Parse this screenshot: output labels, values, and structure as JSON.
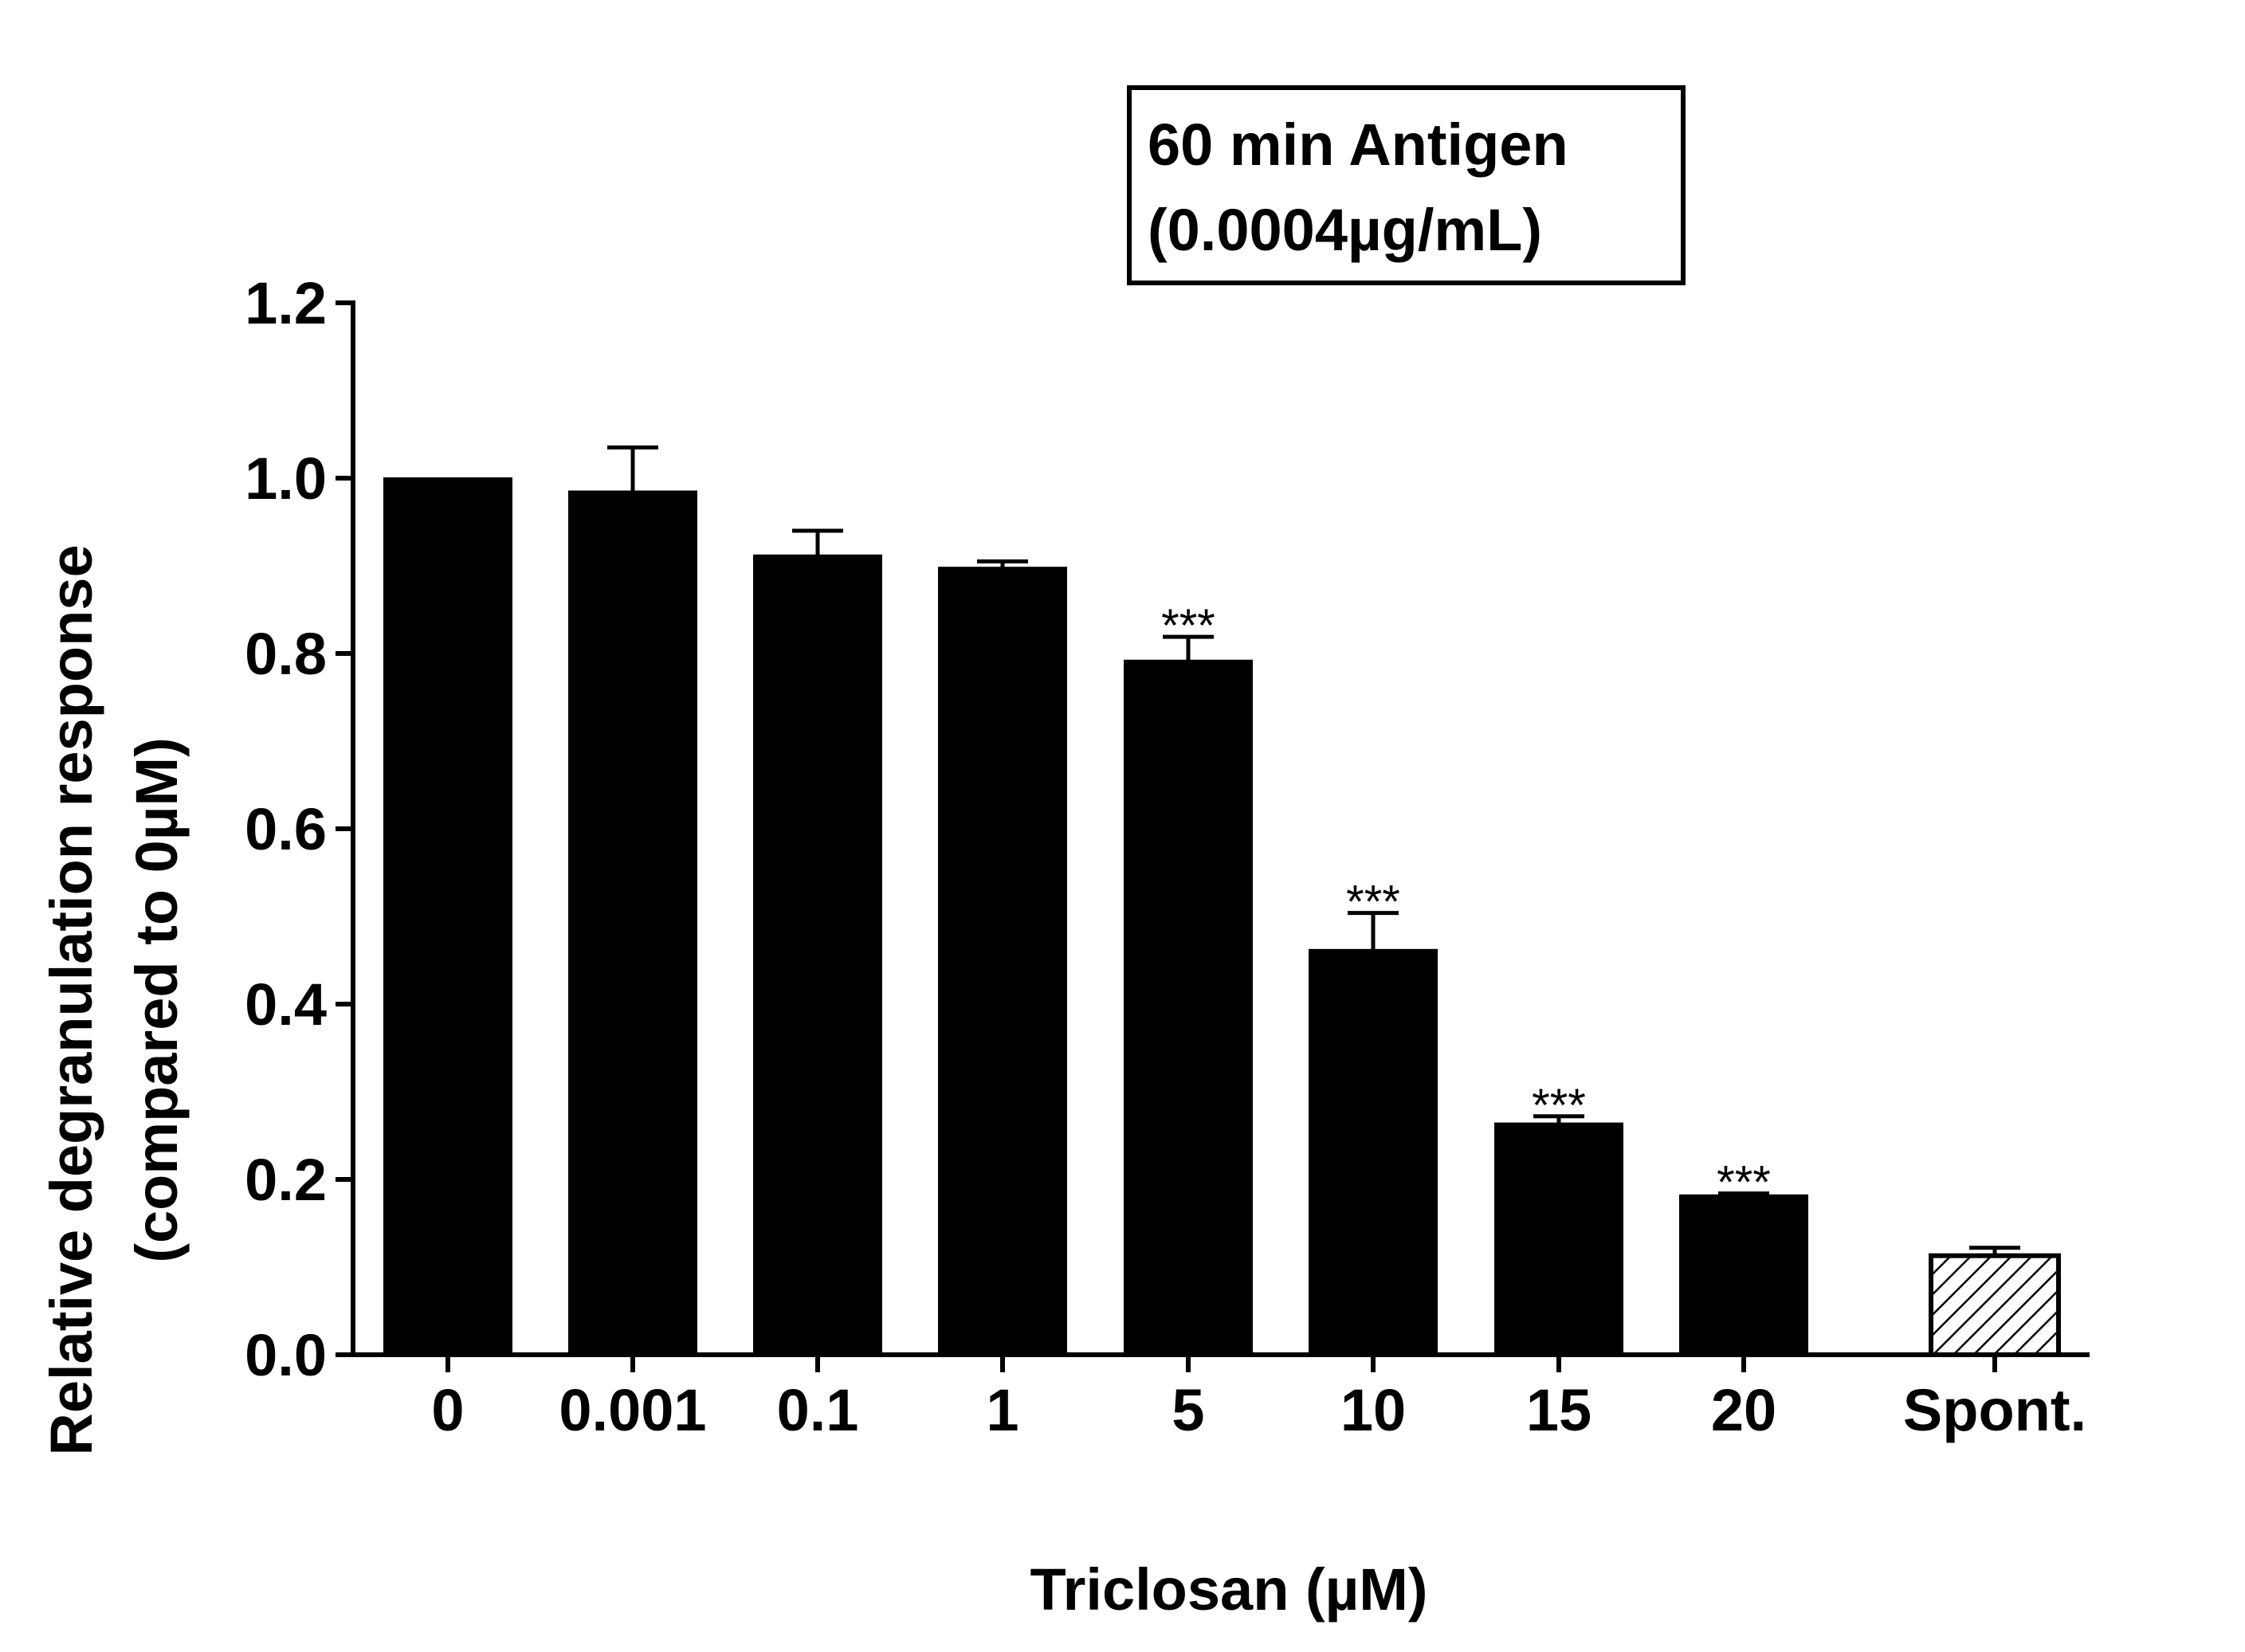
{
  "chart_data": {
    "type": "bar",
    "title": "",
    "xlabel": "Triclosan  (µM)",
    "ylabel": "Relative degranulation response",
    "ylabel_line2": "(compared to 0µM)",
    "ylim": [
      0,
      1.2
    ],
    "yticks": [
      "0.0",
      "0.2",
      "0.4",
      "0.6",
      "0.8",
      "1.0",
      "1.2"
    ],
    "legend_box": {
      "line1": "60 min  Antigen",
      "line2": "(0.0004µg/mL)",
      "placement": "top-right"
    },
    "categories": [
      "0",
      "0.001",
      "0.1",
      "1",
      "5",
      "10",
      "15",
      "20",
      "Spont."
    ],
    "values": [
      1.0,
      0.985,
      0.912,
      0.898,
      0.792,
      0.462,
      0.264,
      0.182,
      0.113
    ],
    "errors": [
      0.0,
      0.05,
      0.028,
      0.007,
      0.027,
      0.042,
      0.008,
      0.002,
      0.009
    ],
    "significance": [
      "",
      "",
      "",
      "",
      "***",
      "***",
      "***",
      "***",
      ""
    ],
    "fill_styles": [
      "solid",
      "solid",
      "solid",
      "solid",
      "solid",
      "solid",
      "solid",
      "solid",
      "hatched"
    ],
    "colors": {
      "bar": "#000000",
      "hatched_bg": "#ffffff",
      "axis": "#000000"
    }
  }
}
